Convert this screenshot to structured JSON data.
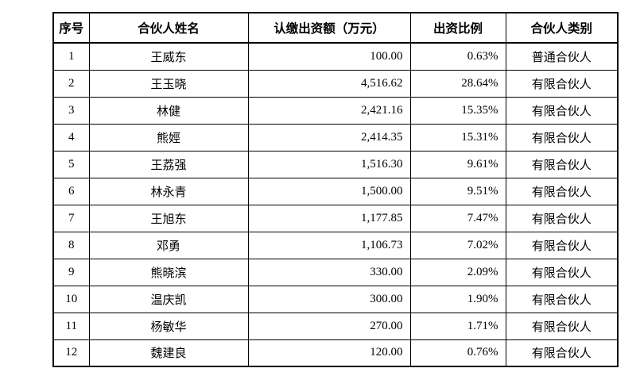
{
  "table": {
    "headers": [
      "序号",
      "合伙人姓名",
      "认缴出资额（万元）",
      "出资比例",
      "合伙人类别"
    ],
    "rows": [
      [
        "1",
        "王威东",
        "100.00",
        "0.63%",
        "普通合伙人"
      ],
      [
        "2",
        "王玉晓",
        "4,516.62",
        "28.64%",
        "有限合伙人"
      ],
      [
        "3",
        "林健",
        "2,421.16",
        "15.35%",
        "有限合伙人"
      ],
      [
        "4",
        "熊娙",
        "2,414.35",
        "15.31%",
        "有限合伙人"
      ],
      [
        "5",
        "王荔强",
        "1,516.30",
        "9.61%",
        "有限合伙人"
      ],
      [
        "6",
        "林永青",
        "1,500.00",
        "9.51%",
        "有限合伙人"
      ],
      [
        "7",
        "王旭东",
        "1,177.85",
        "7.47%",
        "有限合伙人"
      ],
      [
        "8",
        "邓勇",
        "1,106.73",
        "7.02%",
        "有限合伙人"
      ],
      [
        "9",
        "熊晓滨",
        "330.00",
        "2.09%",
        "有限合伙人"
      ],
      [
        "10",
        "温庆凯",
        "300.00",
        "1.90%",
        "有限合伙人"
      ],
      [
        "11",
        "杨敏华",
        "270.00",
        "1.71%",
        "有限合伙人"
      ],
      [
        "12",
        "魏建良",
        "120.00",
        "0.76%",
        "有限合伙人"
      ]
    ]
  }
}
